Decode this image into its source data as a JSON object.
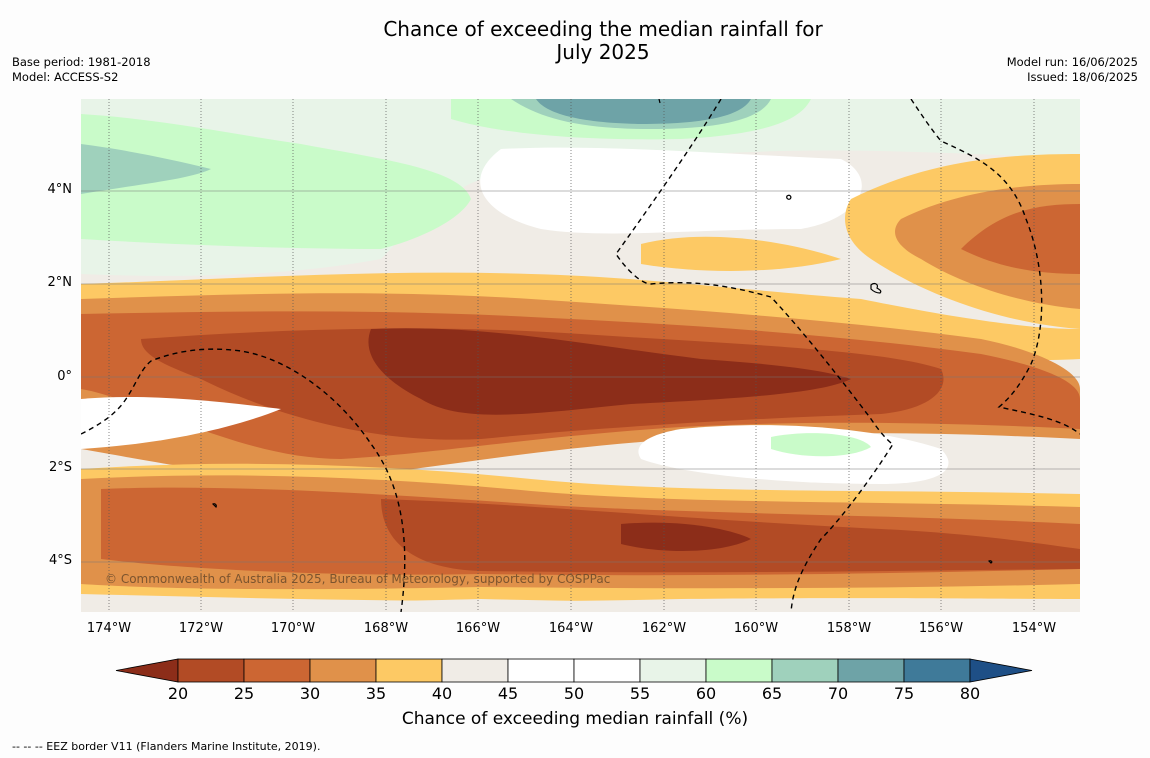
{
  "title": "Chance of exceeding the median rainfall for\nJuly 2025",
  "meta_left": {
    "base_period": "Base period: 1981-2018",
    "model": "Model: ACCESS-S2"
  },
  "meta_right": {
    "model_run": "Model run: 16/06/2025",
    "issued": "Issued: 18/06/2025"
  },
  "x_ticks": [
    "174°W",
    "172°W",
    "170°W",
    "168°W",
    "166°W",
    "164°W",
    "162°W",
    "160°W",
    "158°W",
    "156°W",
    "154°W"
  ],
  "y_ticks": [
    "4°N",
    "2°N",
    "0°",
    "2°S",
    "4°S"
  ],
  "colorbar": {
    "ticks": [
      "20",
      "25",
      "30",
      "35",
      "40",
      "45",
      "50",
      "55",
      "60",
      "65",
      "70",
      "75",
      "80"
    ],
    "label": "Chance of exceeding median rainfall (%)",
    "colors": [
      "#8c2d19",
      "#b24b25",
      "#cc6633",
      "#e0914a",
      "#fdc964",
      "#f0ece6",
      "#ffffff",
      "#ffffff",
      "#e8f4e8",
      "#c9fbc9",
      "#9fd1bc",
      "#6ea3a7",
      "#3f7a99",
      "#1e4f86"
    ]
  },
  "copyright": "© Commonwealth of Australia 2025, Bureau of Meteorology, supported by COSPPac",
  "footer": "--  --  -- EEZ border V11 (Flanders Marine Institute, 2019)."
}
